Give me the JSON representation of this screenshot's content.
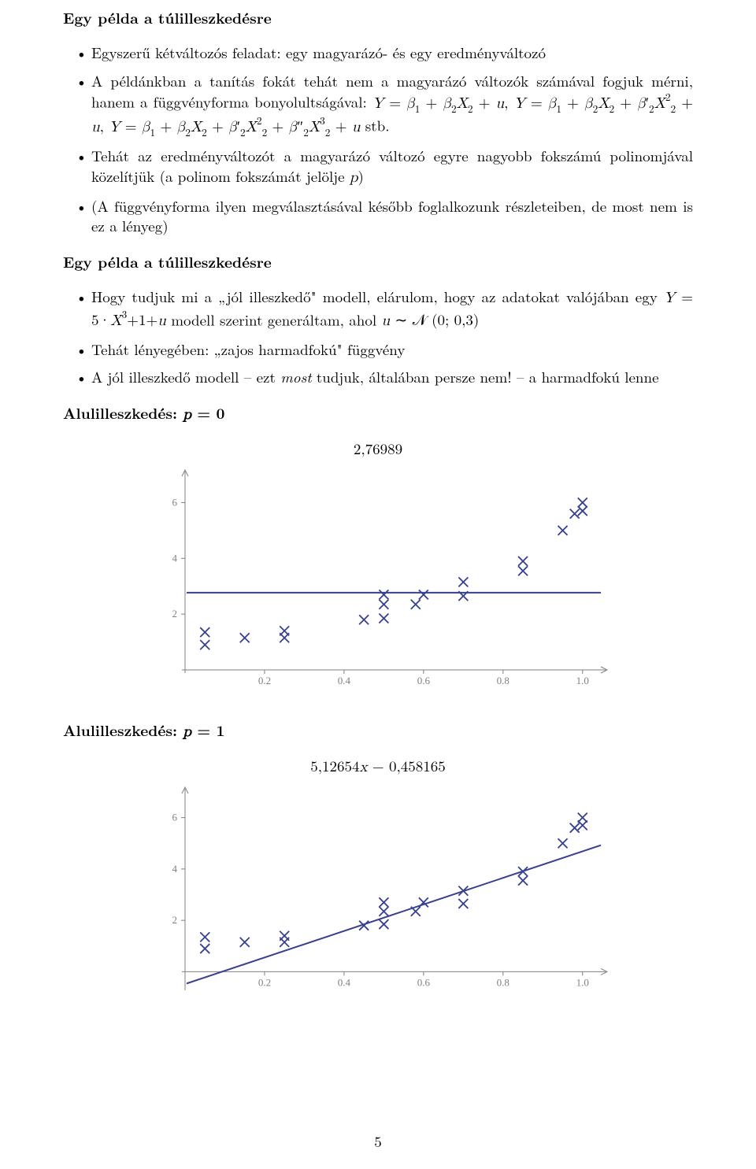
{
  "section1_title": "Egy példa a túlilleszkedésre",
  "section1_bullets": {
    "b0": "Egyszerű kétváltozós feladat: egy magyarázó- és egy eredményváltozó",
    "b1_pre": "A példánkban a tanítás fokát tehát nem a magyarázó változók számával fogjuk mérni, hanem a függvényforma bonyolultságával: ",
    "b1_post": " stb.",
    "b2_pre": "Tehát az eredményváltozót a magyarázó változó egyre nagyobb fokszámú polinomjával közelítjük (a polinom fokszámát jelölje ",
    "b2_post": ")",
    "b3": "(A függvényforma ilyen megválasztásával később foglalkozunk részleteiben, de most nem is ez a lényeg)"
  },
  "section2_title": "Egy példa a túlilleszkedésre",
  "section2_bullets": {
    "b0_pre": "Hogy tudjuk mi a „jól illeszkedő\" modell, elárulom, hogy az adatokat valójában egy ",
    "b0_mid": " modell szerint generáltam, ahol ",
    "b1": "Tehát lényegében: „zajos harmadfokú\" függvény",
    "b2_pre": "A jól illeszkedő modell – ezt ",
    "b2_mid": "most",
    "b2_post": " tudjuk, általában persze nem! – a harmadfokú lenne"
  },
  "chart1_heading_pre": "Alulilleszkedés: ",
  "chart1_heading_math": "p = 0",
  "chart2_heading_pre": "Alulilleszkedés: ",
  "chart2_heading_math": "p = 1",
  "page_number": "5",
  "chart1": {
    "type": "scatter+line",
    "title": "2,76989",
    "background": "#ffffff",
    "axis_color": "#808080",
    "line_color": "#36408f",
    "marker_color": "#36408f",
    "marker_style": "x",
    "marker_size": 6,
    "line_width": 2,
    "xlim": [
      0.0,
      1.05
    ],
    "ylim": [
      0.0,
      7.0
    ],
    "x_ticks": [
      0.2,
      0.4,
      0.6,
      0.8,
      1.0
    ],
    "x_tick_labels": [
      "0.2",
      "0.4",
      "0.6",
      "0.8",
      "1.0"
    ],
    "y_ticks": [
      2,
      4,
      6
    ],
    "y_tick_labels": [
      "2",
      "4",
      "6"
    ],
    "fit": {
      "type": "hline",
      "y": 2.77
    },
    "points": [
      {
        "x": 0.05,
        "y": 1.35
      },
      {
        "x": 0.05,
        "y": 0.9
      },
      {
        "x": 0.15,
        "y": 1.15
      },
      {
        "x": 0.25,
        "y": 1.15
      },
      {
        "x": 0.25,
        "y": 1.4
      },
      {
        "x": 0.45,
        "y": 1.8
      },
      {
        "x": 0.5,
        "y": 1.85
      },
      {
        "x": 0.5,
        "y": 2.35
      },
      {
        "x": 0.5,
        "y": 2.7
      },
      {
        "x": 0.58,
        "y": 2.35
      },
      {
        "x": 0.6,
        "y": 2.7
      },
      {
        "x": 0.7,
        "y": 2.65
      },
      {
        "x": 0.7,
        "y": 3.15
      },
      {
        "x": 0.85,
        "y": 3.55
      },
      {
        "x": 0.85,
        "y": 3.9
      },
      {
        "x": 0.95,
        "y": 5.0
      },
      {
        "x": 0.98,
        "y": 5.6
      },
      {
        "x": 1.0,
        "y": 5.7
      },
      {
        "x": 1.0,
        "y": 6.0
      }
    ]
  },
  "chart2": {
    "type": "scatter+line",
    "title_tex": "5,12654x − 0,458165",
    "background": "#ffffff",
    "axis_color": "#808080",
    "line_color": "#36408f",
    "marker_color": "#36408f",
    "marker_style": "x",
    "marker_size": 6,
    "line_width": 2,
    "xlim": [
      0.0,
      1.05
    ],
    "ylim": [
      -0.6,
      7.0
    ],
    "x_ticks": [
      0.2,
      0.4,
      0.6,
      0.8,
      1.0
    ],
    "x_tick_labels": [
      "0.2",
      "0.4",
      "0.6",
      "0.8",
      "1.0"
    ],
    "y_ticks": [
      2,
      4,
      6
    ],
    "y_tick_labels": [
      "2",
      "4",
      "6"
    ],
    "fit": {
      "type": "linear",
      "slope": 5.12654,
      "intercept": -0.458165
    },
    "points": [
      {
        "x": 0.05,
        "y": 1.35
      },
      {
        "x": 0.05,
        "y": 0.9
      },
      {
        "x": 0.15,
        "y": 1.15
      },
      {
        "x": 0.25,
        "y": 1.15
      },
      {
        "x": 0.25,
        "y": 1.4
      },
      {
        "x": 0.45,
        "y": 1.8
      },
      {
        "x": 0.5,
        "y": 1.85
      },
      {
        "x": 0.5,
        "y": 2.35
      },
      {
        "x": 0.5,
        "y": 2.7
      },
      {
        "x": 0.58,
        "y": 2.35
      },
      {
        "x": 0.6,
        "y": 2.7
      },
      {
        "x": 0.7,
        "y": 2.65
      },
      {
        "x": 0.7,
        "y": 3.15
      },
      {
        "x": 0.85,
        "y": 3.55
      },
      {
        "x": 0.85,
        "y": 3.9
      },
      {
        "x": 0.95,
        "y": 5.0
      },
      {
        "x": 0.98,
        "y": 5.6
      },
      {
        "x": 1.0,
        "y": 5.7
      },
      {
        "x": 1.0,
        "y": 6.0
      }
    ]
  }
}
